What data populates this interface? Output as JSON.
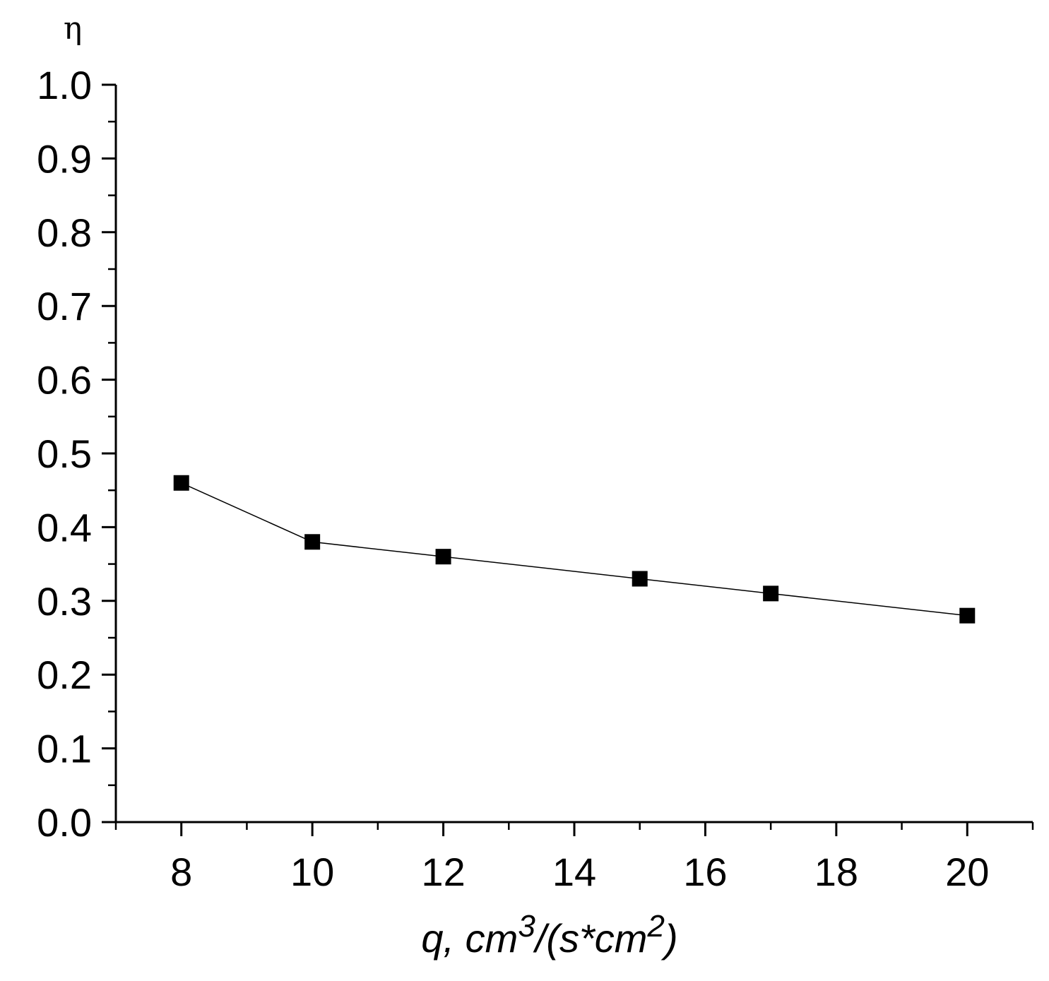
{
  "chart_data": {
    "type": "line",
    "title": "",
    "ylabel": "η",
    "xlabel": {
      "parts": [
        {
          "text": "q, cm",
          "sup": false
        },
        {
          "text": "3",
          "sup": true
        },
        {
          "text": "/(s*cm",
          "sup": false
        },
        {
          "text": "2",
          "sup": true
        },
        {
          "text": ")",
          "sup": false
        }
      ]
    },
    "xlim": [
      7,
      21
    ],
    "ylim": [
      0.0,
      1.0
    ],
    "x_ticks": [
      8,
      10,
      12,
      14,
      16,
      18,
      20
    ],
    "x_tick_labels": [
      "8",
      "10",
      "12",
      "14",
      "16",
      "18",
      "20"
    ],
    "x_minor_step": 1,
    "y_ticks": [
      0.0,
      0.1,
      0.2,
      0.3,
      0.4,
      0.5,
      0.6,
      0.7,
      0.8,
      0.9,
      1.0
    ],
    "y_tick_labels": [
      "0.0",
      "0.1",
      "0.2",
      "0.3",
      "0.4",
      "0.5",
      "0.6",
      "0.7",
      "0.8",
      "0.9",
      "1.0"
    ],
    "y_minor_step": 0.05,
    "grid": false,
    "legend": "none",
    "series": [
      {
        "x": [
          8,
          10,
          12,
          15,
          17,
          20
        ],
        "y": [
          0.46,
          0.38,
          0.36,
          0.33,
          0.31,
          0.28
        ],
        "marker": "square",
        "line_color": "#000000",
        "marker_color": "#000000"
      }
    ]
  }
}
